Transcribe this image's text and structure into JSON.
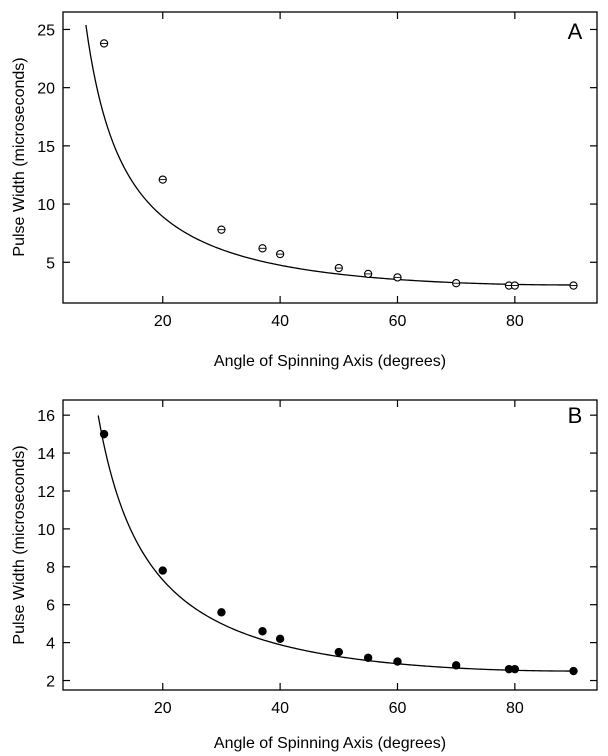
{
  "chart_data": [
    {
      "type": "scatter",
      "panel_label": "A",
      "xlabel": "Angle of Spinning Axis  (degrees)",
      "ylabel": "Pulse Width  (microseconds)",
      "xlim": [
        3,
        94
      ],
      "ylim": [
        1.5,
        26.5
      ],
      "xticks": [
        20,
        40,
        60,
        80
      ],
      "yticks": [
        5,
        10,
        15,
        20,
        25
      ],
      "marker": "open-circle",
      "points": [
        {
          "x": 10,
          "y": 23.8
        },
        {
          "x": 20,
          "y": 12.1
        },
        {
          "x": 30,
          "y": 7.8
        },
        {
          "x": 37,
          "y": 6.2
        },
        {
          "x": 40,
          "y": 5.7
        },
        {
          "x": 50,
          "y": 4.5
        },
        {
          "x": 55,
          "y": 4.0
        },
        {
          "x": 60,
          "y": 3.7
        },
        {
          "x": 70,
          "y": 3.2
        },
        {
          "x": 79,
          "y": 3.0
        },
        {
          "x": 80,
          "y": 3.0
        },
        {
          "x": 90,
          "y": 3.0
        }
      ],
      "fit": {
        "a": 3.05,
        "x_start": 6.9,
        "x_end": 90
      }
    },
    {
      "type": "scatter",
      "panel_label": "B",
      "xlabel": "Angle of Spinning Axis  (degrees)",
      "ylabel": "Pulse Width  (microseconds)",
      "xlim": [
        3,
        94
      ],
      "ylim": [
        1.5,
        16.8
      ],
      "xticks": [
        20,
        40,
        60,
        80
      ],
      "yticks": [
        2,
        4,
        6,
        8,
        10,
        12,
        14,
        16
      ],
      "marker": "filled-circle",
      "points": [
        {
          "x": 10,
          "y": 15.0
        },
        {
          "x": 20,
          "y": 7.8
        },
        {
          "x": 30,
          "y": 5.6
        },
        {
          "x": 37,
          "y": 4.6
        },
        {
          "x": 40,
          "y": 4.2
        },
        {
          "x": 50,
          "y": 3.5
        },
        {
          "x": 55,
          "y": 3.2
        },
        {
          "x": 60,
          "y": 3.0
        },
        {
          "x": 70,
          "y": 2.8
        },
        {
          "x": 79,
          "y": 2.6
        },
        {
          "x": 80,
          "y": 2.6
        },
        {
          "x": 90,
          "y": 2.5
        }
      ],
      "fit": {
        "a": 2.5,
        "x_start": 9.0,
        "x_end": 90
      }
    }
  ]
}
